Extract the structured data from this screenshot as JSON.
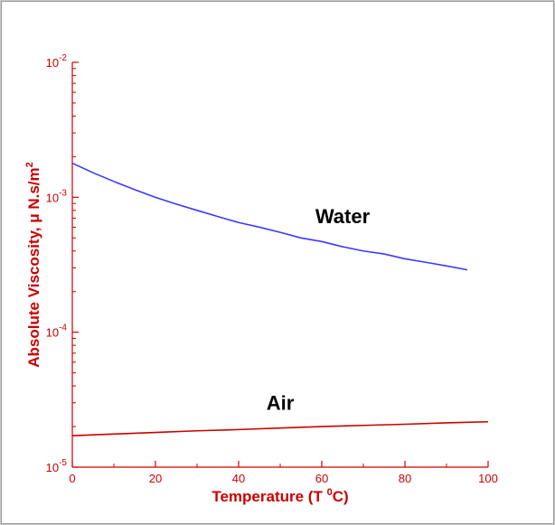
{
  "chart_data": {
    "type": "line",
    "xlabel": {
      "text": "Temperature (T ",
      "sup": "0",
      "tail": "C)"
    },
    "ylabel": {
      "text": "Absolute Viscosity, μ  N.s/m",
      "sup": "2"
    },
    "xlim": [
      0,
      100
    ],
    "ylim": [
      1e-05,
      0.01
    ],
    "yscale": "log",
    "x_ticks": [
      "0",
      "20",
      "40",
      "60",
      "80",
      "100"
    ],
    "y_ticks": [
      {
        "base": "10",
        "exp": "-5",
        "value": 1e-05
      },
      {
        "base": "10",
        "exp": "-4",
        "value": 0.0001
      },
      {
        "base": "10",
        "exp": "-3",
        "value": 0.001
      },
      {
        "base": "10",
        "exp": "-2",
        "value": 0.01
      }
    ],
    "grid": false,
    "series": [
      {
        "name": "Water",
        "color": "#3a3aff",
        "x": [
          0,
          5,
          10,
          15,
          20,
          25,
          30,
          35,
          40,
          45,
          50,
          55,
          60,
          65,
          70,
          75,
          80,
          85,
          90,
          95
        ],
        "y": [
          0.00179,
          0.00152,
          0.00131,
          0.00114,
          0.001,
          0.00089,
          0.0008,
          0.00072,
          0.00065,
          0.0006,
          0.00055,
          0.0005,
          0.00047,
          0.00043,
          0.0004,
          0.00038,
          0.00035,
          0.00033,
          0.00031,
          0.00029
        ]
      },
      {
        "name": "Air",
        "color": "#cc0000",
        "x": [
          0,
          10,
          20,
          30,
          40,
          50,
          60,
          70,
          80,
          90,
          100
        ],
        "y": [
          1.71e-05,
          1.76e-05,
          1.81e-05,
          1.86e-05,
          1.9e-05,
          1.95e-05,
          2e-05,
          2.04e-05,
          2.08e-05,
          2.13e-05,
          2.17e-05
        ]
      }
    ],
    "colors": {
      "axis": "#cc0000",
      "text": "#000000"
    }
  }
}
